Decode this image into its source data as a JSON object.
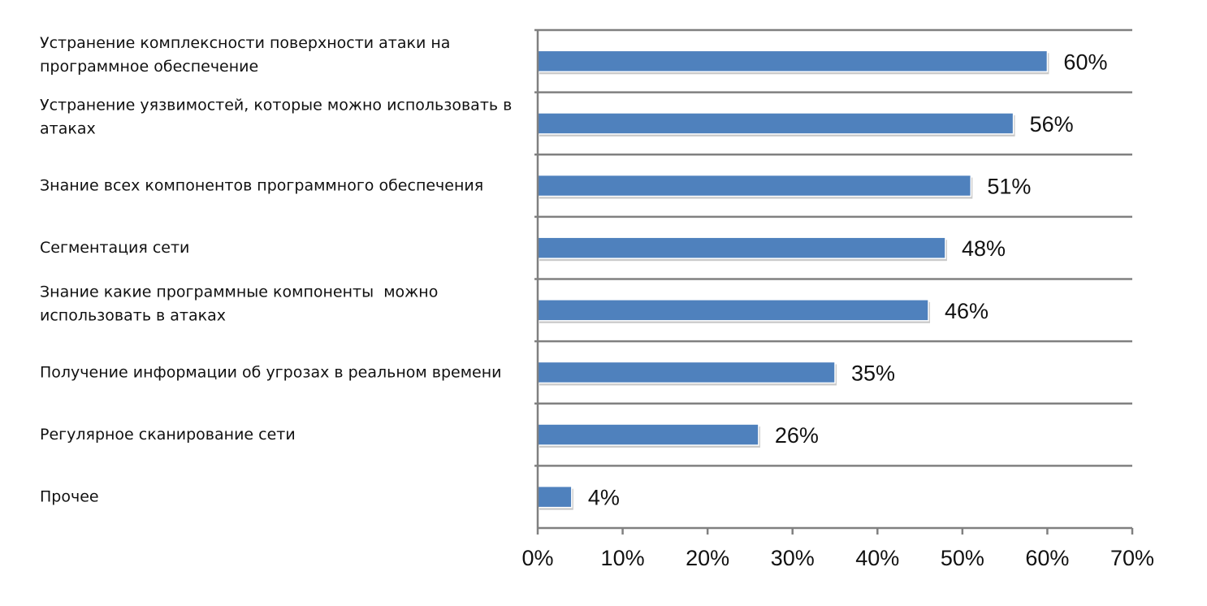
{
  "chart_data": {
    "type": "bar",
    "orientation": "horizontal",
    "categories": [
      [
        "Устранение комплексности поверхности атаки на",
        "программное обеспечение"
      ],
      [
        "Устранение уязвимостей, которые можно использовать в",
        "атаках"
      ],
      [
        "Знание всех компонентов программного обеспечения"
      ],
      [
        "Сегментация сети"
      ],
      [
        "Знание какие программные компоненты  можно",
        "использовать в атаках"
      ],
      [
        "Получение информации об угрозах в реальном времени"
      ],
      [
        "Регулярное сканирование сети"
      ],
      [
        "Прочее"
      ]
    ],
    "values": [
      60,
      56,
      51,
      48,
      46,
      35,
      26,
      4
    ],
    "value_labels": [
      "60%",
      "56%",
      "51%",
      "48%",
      "46%",
      "35%",
      "26%",
      "4%"
    ],
    "xlim": [
      0,
      70
    ],
    "xticks": [
      0,
      10,
      20,
      30,
      40,
      50,
      60,
      70
    ],
    "xtick_labels": [
      "0%",
      "10%",
      "20%",
      "30%",
      "40%",
      "50%",
      "60%",
      "70%"
    ],
    "title": "",
    "xlabel": "",
    "ylabel": "",
    "grid": "horizontal separators between categories",
    "legend": "none",
    "colors": {
      "bar": "#4F81BD",
      "axis": "#808080",
      "text": "#111111"
    }
  }
}
